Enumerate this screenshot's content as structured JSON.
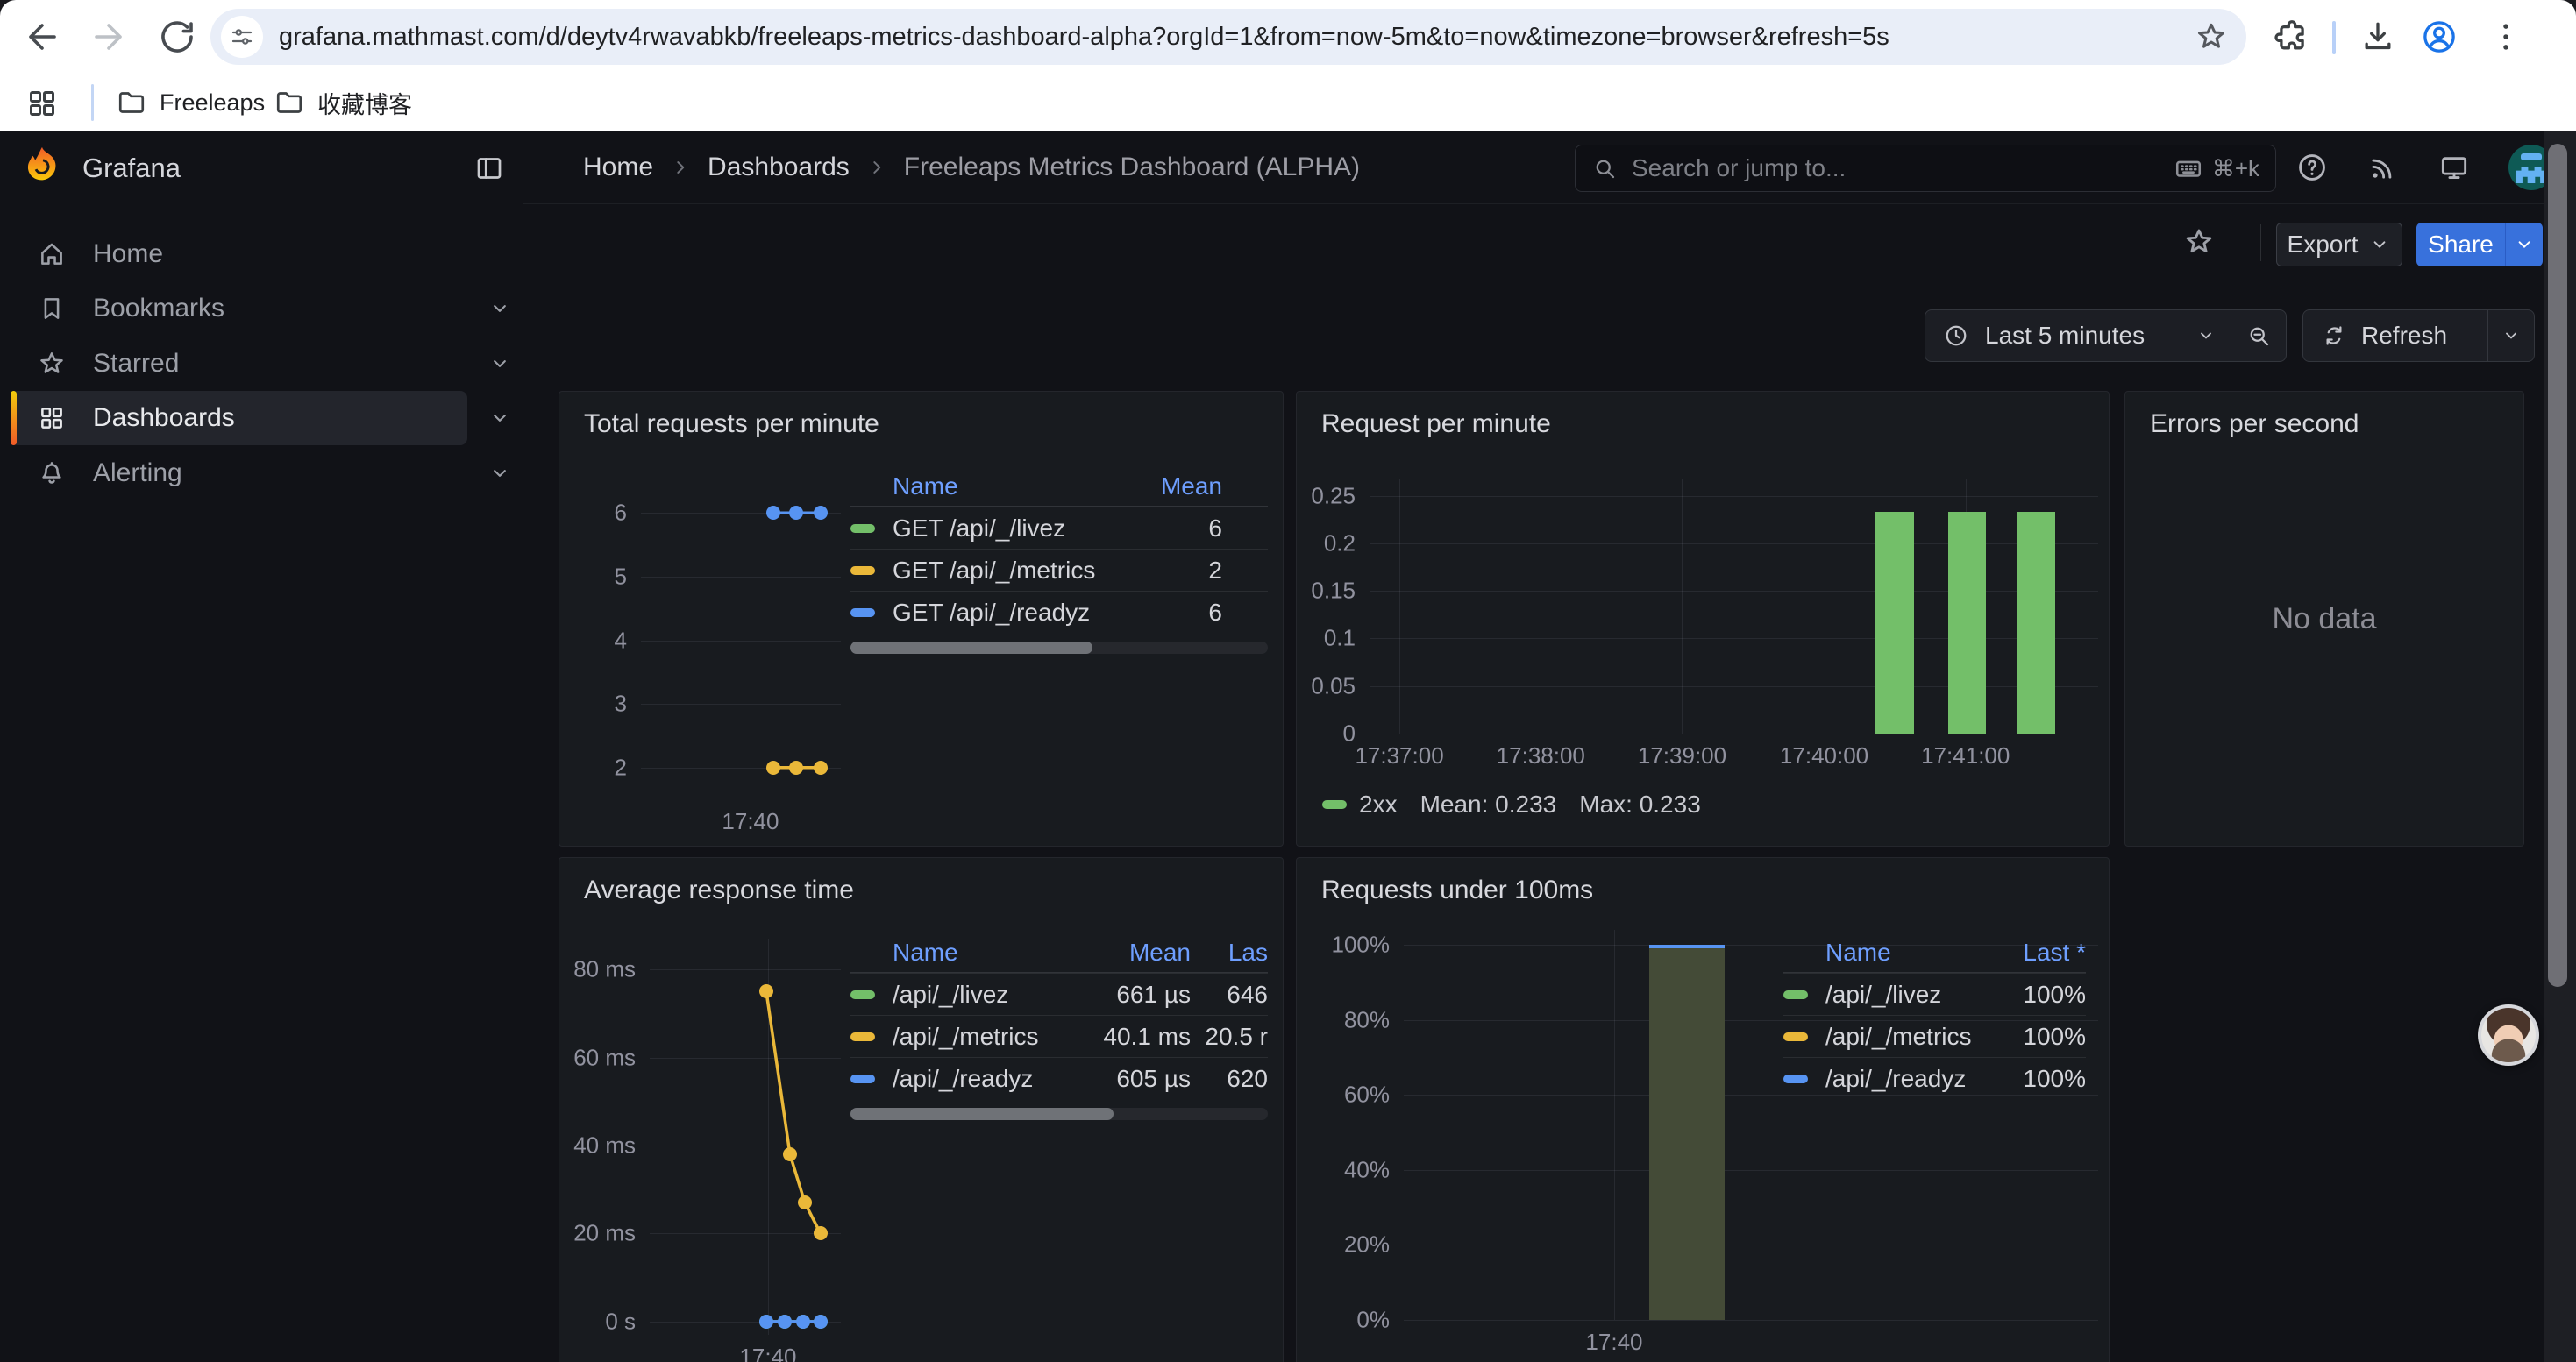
{
  "browser": {
    "url": "grafana.mathmast.com/d/deytv4rwavabkb/freeleaps-metrics-dashboard-alpha?orgId=1&from=now-5m&to=now&timezone=browser&refresh=5s",
    "bookmarks": [
      {
        "label": "Freeleaps"
      },
      {
        "label": "收藏博客"
      }
    ]
  },
  "grafana": {
    "brand": "Grafana",
    "breadcrumb": [
      "Home",
      "Dashboards",
      "Freeleaps Metrics Dashboard (ALPHA)"
    ],
    "search_placeholder": "Search or jump to...",
    "search_shortcut": "⌘+k",
    "sidebar": [
      {
        "label": "Home"
      },
      {
        "label": "Bookmarks"
      },
      {
        "label": "Starred"
      },
      {
        "label": "Dashboards"
      },
      {
        "label": "Alerting"
      }
    ],
    "toolbar": {
      "export": "Export",
      "share": "Share",
      "time_range": "Last 5 minutes",
      "refresh": "Refresh"
    }
  },
  "colors": {
    "accent_orange": "#f05a28",
    "share_blue": "#3871dc",
    "legend_header_blue": "#6e9fff",
    "green": "#73bf69",
    "yellow": "#eab839",
    "blue": "#5794f2"
  },
  "chart_data": [
    {
      "key": "total-requests-per-minute",
      "type": "line",
      "title": "Total requests per minute",
      "ylim": [
        1.5,
        6.5
      ],
      "yticks": [
        {
          "v": 6,
          "label": "6"
        },
        {
          "v": 5,
          "label": "5"
        },
        {
          "v": 4,
          "label": "4"
        },
        {
          "v": 3,
          "label": "3"
        },
        {
          "v": 2,
          "label": "2"
        }
      ],
      "xticks": [
        {
          "f": 0.548,
          "label": "17:40"
        }
      ],
      "series": [
        {
          "name": "GET /api/_/readyz",
          "color": "#5794f2",
          "points": [
            {
              "f": 0.662,
              "v": 6
            },
            {
              "f": 0.776,
              "v": 6
            },
            {
              "f": 0.899,
              "v": 6
            }
          ]
        },
        {
          "name": "GET /api/_/metrics",
          "color": "#eab839",
          "points": [
            {
              "f": 0.662,
              "v": 2
            },
            {
              "f": 0.776,
              "v": 2
            },
            {
              "f": 0.899,
              "v": 2
            }
          ]
        }
      ],
      "legend_table": {
        "cols": [
          {
            "label": "Name",
            "align": "left"
          },
          {
            "label": "Mean",
            "align": "right"
          }
        ],
        "rows": [
          {
            "color": "#73bf69",
            "cells": [
              "GET /api/_/livez",
              "6"
            ]
          },
          {
            "color": "#eab839",
            "cells": [
              "GET /api/_/metrics",
              "2"
            ]
          },
          {
            "color": "#5794f2",
            "cells": [
              "GET /api/_/readyz",
              "6"
            ]
          }
        ],
        "scroll_thumb": 0.58
      }
    },
    {
      "key": "request-per-minute",
      "type": "bar",
      "title": "Request per minute",
      "ylim": [
        0,
        0.268
      ],
      "bar_color": "#73bf69",
      "yticks": [
        {
          "v": 0.25,
          "label": "0.25"
        },
        {
          "v": 0.2,
          "label": "0.2"
        },
        {
          "v": 0.15,
          "label": "0.15"
        },
        {
          "v": 0.1,
          "label": "0.1"
        },
        {
          "v": 0.05,
          "label": "0.05"
        },
        {
          "v": 0,
          "label": "0"
        }
      ],
      "xticks": [
        {
          "f": 0.041,
          "label": "17:37:00"
        },
        {
          "f": 0.235,
          "label": "17:38:00"
        },
        {
          "f": 0.429,
          "label": "17:39:00"
        },
        {
          "f": 0.624,
          "label": "17:40:00"
        },
        {
          "f": 0.818,
          "label": "17:41:00"
        }
      ],
      "bars": [
        {
          "f0": 0.694,
          "f1": 0.747,
          "v": 0.233
        },
        {
          "f0": 0.794,
          "f1": 0.846,
          "v": 0.233
        },
        {
          "f0": 0.889,
          "f1": 0.941,
          "v": 0.233
        }
      ],
      "legend": {
        "color": "#73bf69",
        "name": "2xx",
        "mean": "Mean: 0.233",
        "max": "Max: 0.233"
      }
    },
    {
      "key": "errors-per-second",
      "type": "none",
      "title": "Errors per second",
      "no_data": "No data"
    },
    {
      "key": "average-response-time",
      "type": "line",
      "title": "Average response time",
      "ylim": [
        -3,
        87
      ],
      "yticks": [
        {
          "v": 80,
          "label": "80 ms"
        },
        {
          "v": 60,
          "label": "60 ms"
        },
        {
          "v": 40,
          "label": "40 ms"
        },
        {
          "v": 20,
          "label": "20 ms"
        },
        {
          "v": 0,
          "label": "0 s"
        }
      ],
      "xticks": [
        {
          "f": 0.619,
          "label": "17:40"
        }
      ],
      "series": [
        {
          "name": "/api/_/livez",
          "color": "#73bf69",
          "points": [
            {
              "f": 0.61,
              "v": 0
            },
            {
              "f": 0.706,
              "v": 0
            },
            {
              "f": 0.803,
              "v": 0
            },
            {
              "f": 0.894,
              "v": 0
            }
          ]
        },
        {
          "name": "/api/_/metrics",
          "color": "#eab839",
          "points": [
            {
              "f": 0.61,
              "v": 75
            },
            {
              "f": 0.734,
              "v": 38
            },
            {
              "f": 0.812,
              "v": 27
            },
            {
              "f": 0.894,
              "v": 20
            }
          ]
        },
        {
          "name": "/api/_/readyz",
          "color": "#5794f2",
          "points": [
            {
              "f": 0.61,
              "v": 0
            },
            {
              "f": 0.706,
              "v": 0
            },
            {
              "f": 0.803,
              "v": 0
            },
            {
              "f": 0.894,
              "v": 0
            }
          ]
        }
      ],
      "legend_table": {
        "cols": [
          {
            "label": "Name",
            "align": "left"
          },
          {
            "label": "Mean",
            "align": "right"
          },
          {
            "label": "Las",
            "align": "right"
          }
        ],
        "rows": [
          {
            "color": "#73bf69",
            "cells": [
              "/api/_/livez",
              "661 µs",
              "646"
            ]
          },
          {
            "color": "#eab839",
            "cells": [
              "/api/_/metrics",
              "40.1 ms",
              "20.5 r"
            ]
          },
          {
            "color": "#5794f2",
            "cells": [
              "/api/_/readyz",
              "605 µs",
              "620"
            ]
          }
        ],
        "scroll_thumb": 0.63
      }
    },
    {
      "key": "requests-under-100ms",
      "type": "area",
      "title": "Requests under 100ms",
      "ylim": [
        0,
        104
      ],
      "yticks": [
        {
          "v": 100,
          "label": "100%"
        },
        {
          "v": 80,
          "label": "80%"
        },
        {
          "v": 60,
          "label": "60%"
        },
        {
          "v": 40,
          "label": "40%"
        },
        {
          "v": 20,
          "label": "20%"
        },
        {
          "v": 0,
          "label": "0%"
        }
      ],
      "xticks": [
        {
          "f": 0.303,
          "label": "17:40"
        }
      ],
      "columns": [
        {
          "f0": 0.354,
          "f1": 0.462,
          "v": 100
        }
      ],
      "legend_table": {
        "cols": [
          {
            "label": "Name",
            "align": "left"
          },
          {
            "label": "Last *",
            "align": "right"
          }
        ],
        "rows": [
          {
            "color": "#73bf69",
            "cells": [
              "/api/_/livez",
              "100%"
            ]
          },
          {
            "color": "#eab839",
            "cells": [
              "/api/_/metrics",
              "100%"
            ]
          },
          {
            "color": "#5794f2",
            "cells": [
              "/api/_/readyz",
              "100%"
            ]
          }
        ]
      }
    }
  ]
}
